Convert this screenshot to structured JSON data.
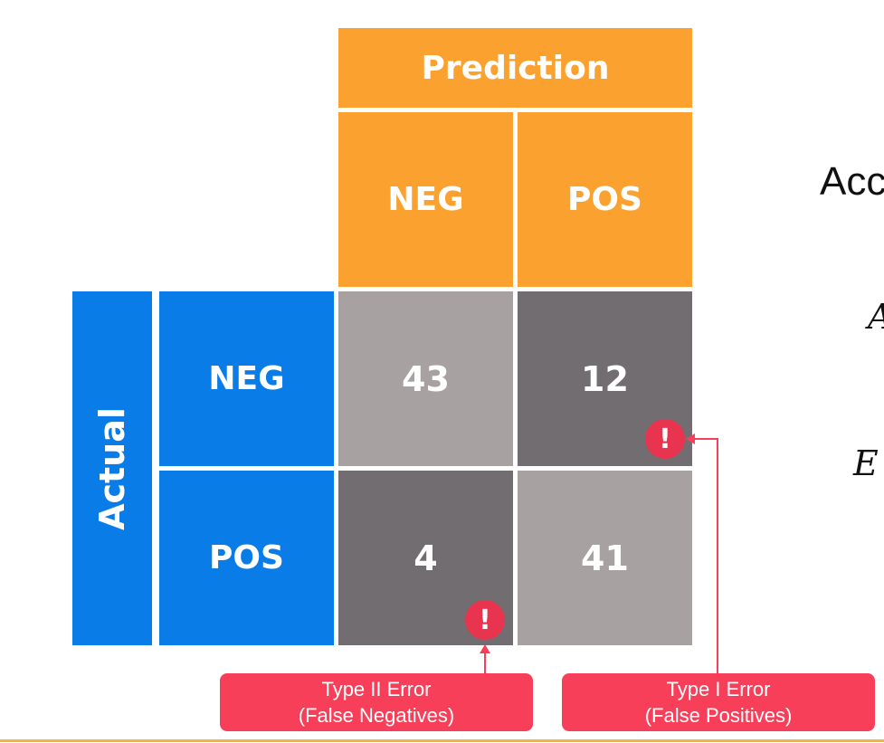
{
  "matrix": {
    "prediction_header": "Prediction",
    "actual_header": "Actual",
    "col_labels": [
      "NEG",
      "POS"
    ],
    "row_labels": [
      "NEG",
      "POS"
    ],
    "cells": [
      [
        "43",
        "12"
      ],
      [
        "4",
        "41"
      ]
    ]
  },
  "warning_icon": {
    "glyph": "!",
    "icon": "exclamation-circle-icon"
  },
  "callouts": {
    "type2": {
      "line1": "Type II Error",
      "line2": "(False Negatives)"
    },
    "type1": {
      "line1": "Type I Error",
      "line2": "(False Positives)"
    }
  },
  "side_text": {
    "t1": "Acc",
    "t2": "A",
    "t3": "E"
  },
  "colors": {
    "header": "#fba130",
    "actual": "#0a7ce8",
    "correct_cell": "#a7a1a1",
    "error_cell": "#716d70",
    "callout": "#f83f5a",
    "warning": "#e8344f"
  }
}
